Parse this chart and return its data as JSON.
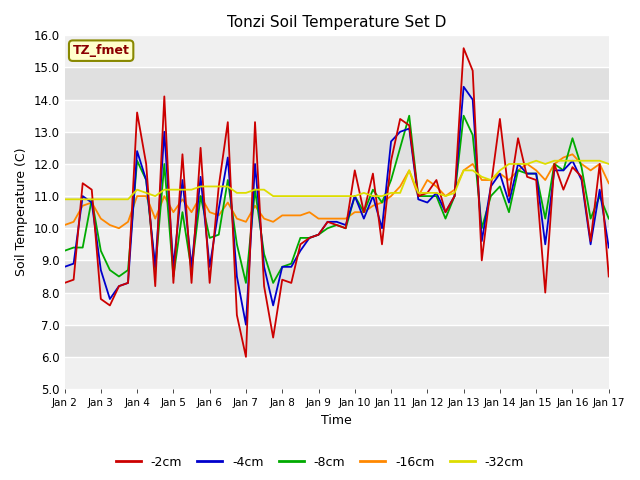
{
  "title": "Tonzi Soil Temperature Set D",
  "xlabel": "Time",
  "ylabel": "Soil Temperature (C)",
  "ylim": [
    5.0,
    16.0
  ],
  "yticks": [
    5.0,
    6.0,
    7.0,
    8.0,
    9.0,
    10.0,
    11.0,
    12.0,
    13.0,
    14.0,
    15.0,
    16.0
  ],
  "xtick_labels": [
    "Jan 2",
    "Jan 3",
    "Jan 4",
    "Jan 5",
    "Jan 6",
    "Jan 7",
    "Jan 8",
    "Jan 9",
    "Jan 10",
    "Jan 11",
    "Jan 12",
    "Jan 13",
    "Jan 14",
    "Jan 15",
    "Jan 16",
    "Jan 17"
  ],
  "colors": {
    "-2cm": "#cc0000",
    "-4cm": "#0000cc",
    "-8cm": "#00aa00",
    "-16cm": "#ff8800",
    "-32cm": "#dddd00"
  },
  "legend_label": "TZ_fmet",
  "legend_bg": "#ffffcc",
  "legend_border": "#999900",
  "fig_bg": "#ffffff",
  "plot_bg_dark": "#e0e0e0",
  "plot_bg_light": "#f0f0f0",
  "series_2cm": [
    8.3,
    8.4,
    11.4,
    11.2,
    7.8,
    7.6,
    8.2,
    8.3,
    13.6,
    12.0,
    8.2,
    14.1,
    8.3,
    12.3,
    8.3,
    12.5,
    8.3,
    11.3,
    13.3,
    7.3,
    6.0,
    13.3,
    8.2,
    6.6,
    8.4,
    8.3,
    9.5,
    9.7,
    9.8,
    10.2,
    10.1,
    10.0,
    11.8,
    10.5,
    11.7,
    9.5,
    12.1,
    13.4,
    13.2,
    11.0,
    11.1,
    11.5,
    10.5,
    11.0,
    15.6,
    14.9,
    9.0,
    11.3,
    13.4,
    11.0,
    12.8,
    11.6,
    11.5,
    8.0,
    12.0,
    11.2,
    11.9,
    11.6,
    9.6,
    12.0,
    8.5
  ],
  "series_4cm": [
    8.8,
    8.9,
    11.0,
    10.8,
    8.7,
    7.8,
    8.2,
    8.3,
    12.4,
    11.5,
    8.8,
    13.0,
    8.8,
    11.5,
    8.8,
    11.6,
    8.8,
    10.6,
    12.2,
    8.5,
    7.0,
    12.0,
    8.8,
    7.6,
    8.8,
    8.8,
    9.3,
    9.7,
    9.8,
    10.2,
    10.2,
    10.1,
    11.0,
    10.3,
    11.0,
    10.0,
    12.7,
    13.0,
    13.1,
    10.9,
    10.8,
    11.1,
    10.5,
    11.0,
    14.4,
    14.0,
    9.6,
    11.3,
    11.7,
    10.8,
    12.0,
    11.7,
    11.7,
    9.5,
    11.8,
    11.8,
    12.1,
    11.5,
    9.5,
    11.2,
    9.4
  ],
  "series_8cm": [
    9.3,
    9.4,
    9.4,
    10.9,
    9.3,
    8.7,
    8.5,
    8.7,
    12.1,
    11.5,
    8.7,
    12.0,
    8.5,
    10.5,
    8.7,
    11.0,
    9.7,
    9.8,
    11.5,
    9.5,
    8.3,
    11.2,
    9.2,
    8.3,
    8.8,
    8.9,
    9.7,
    9.7,
    9.8,
    10.0,
    10.1,
    10.0,
    11.0,
    10.5,
    11.2,
    10.8,
    11.5,
    12.5,
    13.5,
    11.0,
    11.0,
    11.0,
    10.3,
    11.0,
    13.5,
    12.9,
    10.0,
    11.0,
    11.3,
    10.5,
    11.8,
    11.7,
    11.7,
    10.3,
    12.0,
    11.8,
    12.8,
    11.9,
    10.3,
    11.0,
    10.3
  ],
  "series_16cm": [
    10.1,
    10.2,
    10.7,
    10.8,
    10.3,
    10.1,
    10.0,
    10.2,
    11.0,
    11.0,
    10.3,
    11.0,
    10.5,
    10.9,
    10.5,
    11.0,
    10.5,
    10.4,
    10.8,
    10.3,
    10.2,
    10.7,
    10.3,
    10.2,
    10.4,
    10.4,
    10.4,
    10.5,
    10.3,
    10.3,
    10.3,
    10.3,
    10.5,
    10.5,
    10.7,
    10.8,
    11.0,
    11.3,
    11.8,
    11.0,
    11.5,
    11.3,
    11.0,
    11.2,
    11.8,
    12.0,
    11.5,
    11.5,
    11.7,
    11.5,
    11.8,
    12.0,
    11.8,
    11.5,
    12.0,
    12.2,
    12.3,
    12.0,
    11.8,
    12.0,
    11.4
  ],
  "series_32cm": [
    10.9,
    10.9,
    10.9,
    10.9,
    10.9,
    10.9,
    10.9,
    10.9,
    11.2,
    11.1,
    11.0,
    11.2,
    11.2,
    11.2,
    11.2,
    11.3,
    11.3,
    11.3,
    11.3,
    11.1,
    11.1,
    11.2,
    11.2,
    11.0,
    11.0,
    11.0,
    11.0,
    11.0,
    11.0,
    11.0,
    11.0,
    11.0,
    11.0,
    11.1,
    11.0,
    11.0,
    11.1,
    11.1,
    11.8,
    11.1,
    11.1,
    11.1,
    11.0,
    11.1,
    11.8,
    11.8,
    11.6,
    11.5,
    11.8,
    12.0,
    12.0,
    12.0,
    12.1,
    12.0,
    12.1,
    12.1,
    12.1,
    12.1,
    12.1,
    12.1,
    12.0
  ]
}
